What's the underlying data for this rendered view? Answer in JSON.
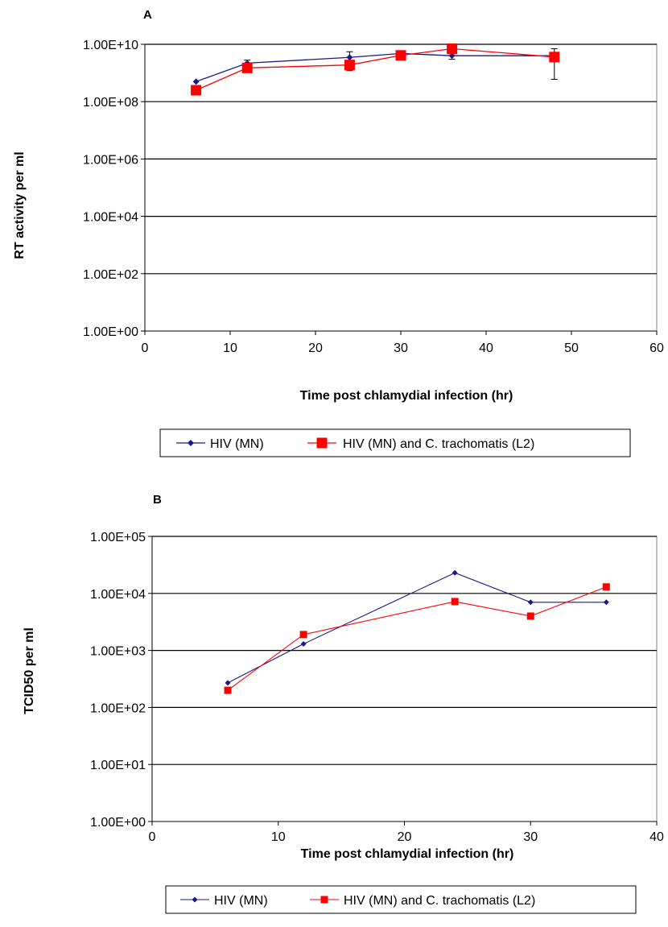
{
  "chart_data": [
    {
      "panel": "A",
      "type": "line",
      "xlabel": "Time post chlamydial infection (hr)",
      "ylabel": "RT activity per ml",
      "xlim": [
        0,
        60
      ],
      "xticks": [
        0,
        10,
        20,
        30,
        40,
        50,
        60
      ],
      "ylim": [
        1,
        10000000000
      ],
      "yscale": "log",
      "yticks": [
        "1.00E+00",
        "1.00E+02",
        "1.00E+04",
        "1.00E+06",
        "1.00E+08",
        "1.00E+10"
      ],
      "grid": true,
      "legend_position": "bottom",
      "x": [
        6,
        12,
        24,
        30,
        36,
        48
      ],
      "series": [
        {
          "name": "HIV (MN)",
          "color": "#1a1a8c",
          "marker": "diamond",
          "values": [
            500000000,
            2200000000,
            3500000000,
            4800000000,
            4000000000,
            4000000000
          ],
          "err_low": [
            null,
            1800000000,
            1500000000,
            4000000000,
            3000000000,
            null
          ],
          "err_high": [
            null,
            2800000000,
            5500000000,
            5500000000,
            5000000000,
            null
          ]
        },
        {
          "name": "HIV (MN) and C. trachomatis (L2)",
          "color": "#ff0000",
          "marker": "square",
          "values": [
            250000000,
            1500000000,
            1900000000,
            4100000000,
            7000000000,
            3600000000
          ],
          "err_low": [
            200000000,
            1200000000,
            1200000000,
            3500000000,
            5000000000,
            600000000
          ],
          "err_high": [
            300000000,
            1800000000,
            2700000000,
            4800000000,
            9000000000,
            7000000000
          ]
        }
      ]
    },
    {
      "panel": "B",
      "type": "line",
      "xlabel": "Time post chlamydial infection (hr)",
      "ylabel": "TCID50 per ml",
      "xlim": [
        0,
        40
      ],
      "xticks": [
        0,
        10,
        20,
        30,
        40
      ],
      "ylim": [
        1,
        100000
      ],
      "yscale": "log",
      "yticks": [
        "1.00E+00",
        "1.00E+01",
        "1.00E+02",
        "1.00E+03",
        "1.00E+04",
        "1.00E+05"
      ],
      "grid": true,
      "legend_position": "bottom",
      "x": [
        6,
        12,
        24,
        30,
        36
      ],
      "series": [
        {
          "name": "HIV (MN)",
          "color": "#1a1a8c",
          "marker": "diamond",
          "values": [
            270,
            1300,
            23000,
            7000,
            7000
          ]
        },
        {
          "name": "HIV (MN) and C. trachomatis (L2)",
          "color": "#ff0000",
          "marker": "square",
          "values": [
            200,
            1900,
            7200,
            4000,
            13000
          ]
        }
      ]
    }
  ]
}
